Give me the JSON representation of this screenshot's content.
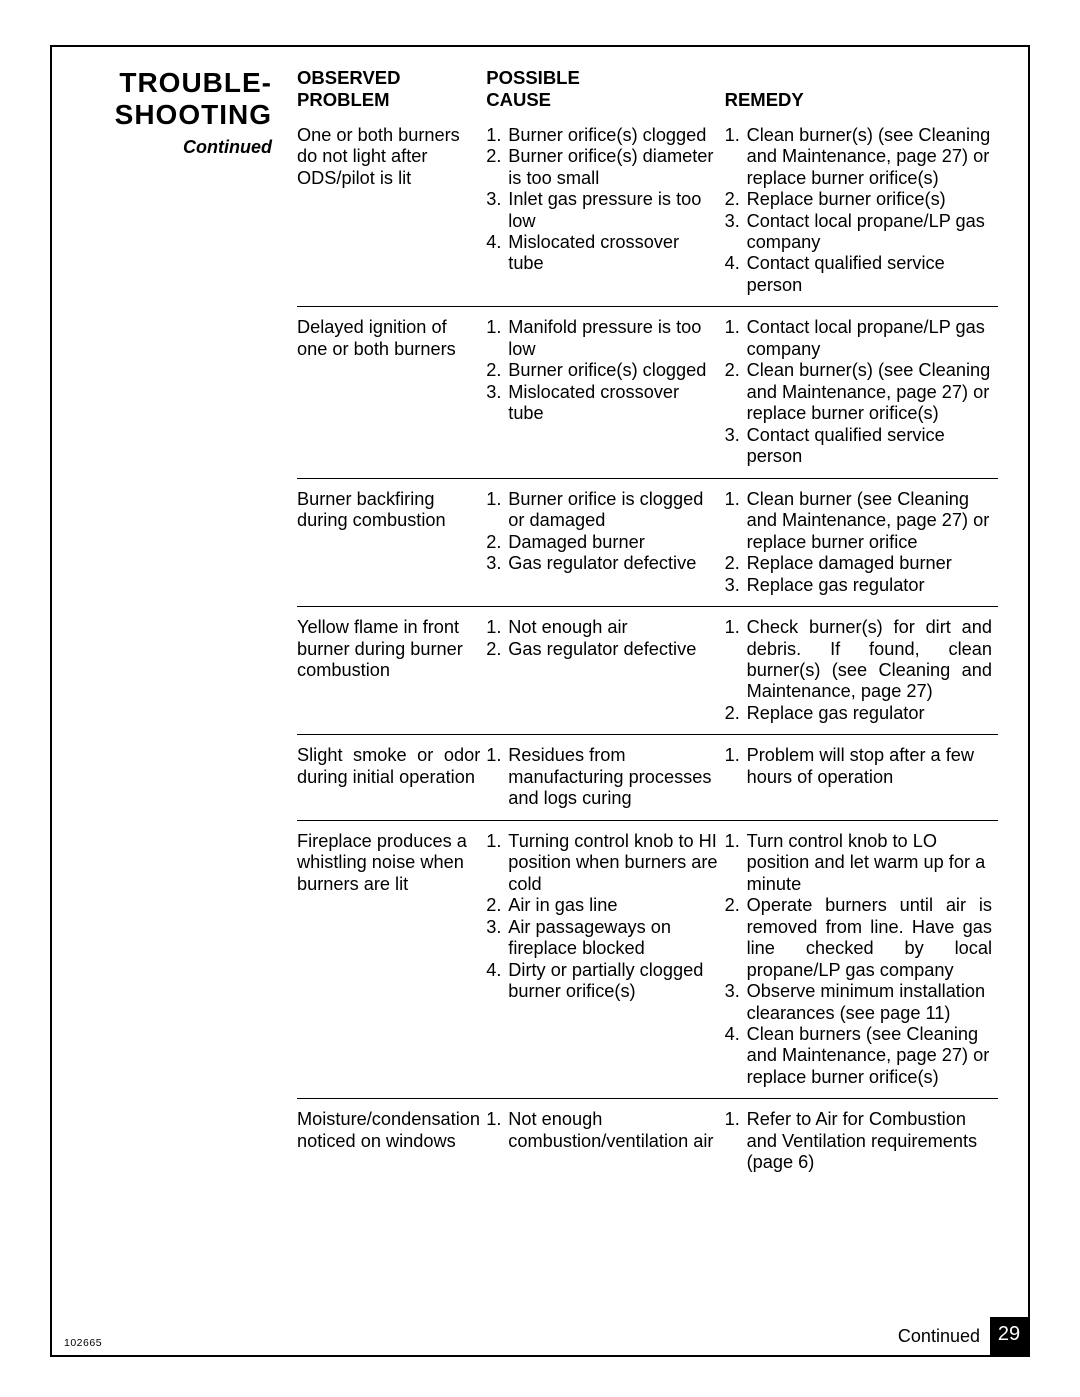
{
  "side": {
    "title_line1": "TROUBLE-",
    "title_line2": "SHOOTING",
    "subtitle": "Continued"
  },
  "headers": {
    "problem_l1": "OBSERVED",
    "problem_l2": "PROBLEM",
    "cause_l1": "POSSIBLE",
    "cause_l2": "CAUSE",
    "remedy": "REMEDY"
  },
  "rows": [
    {
      "problem": "One or both burners do not light after ODS/pilot is lit",
      "causes": [
        "Burner orifice(s) clogged",
        "Burner orifice(s) diameter is too small",
        "Inlet gas pressure is too low",
        "Mislocated crossover tube"
      ],
      "remedies": [
        "Clean burner(s) (see Cleaning and Maintenance, page 27) or replace burner orifice(s)",
        "Replace burner orifice(s)",
        "Contact local propane/LP gas company",
        "Contact qualified service person"
      ]
    },
    {
      "problem": "Delayed ignition of one or both burners",
      "causes": [
        "Manifold pressure is too low",
        "Burner orifice(s) clogged",
        "Mislocated crossover tube"
      ],
      "remedies": [
        "Contact local propane/LP gas company",
        "Clean burner(s) (see Cleaning and Maintenance, page 27) or replace burner orifice(s)",
        "Contact qualified service person"
      ]
    },
    {
      "problem": "Burner backfiring during combustion",
      "causes": [
        "Burner orifice is clogged or damaged",
        "Damaged burner",
        "Gas regulator defective"
      ],
      "remedies": [
        "Clean burner (see Cleaning and Maintenance, page 27) or replace burner orifice",
        "Replace damaged burner",
        "Replace gas regulator"
      ]
    },
    {
      "problem": "Yellow flame in front burner during burner combustion",
      "causes": [
        "Not enough air",
        "Gas regulator defective"
      ],
      "remedies": [
        "Check burner(s) for dirt and debris. If found, clean burner(s) (see Cleaning and Maintenance, page 27)",
        "Replace gas regulator"
      ],
      "remedy_justify": [
        0
      ]
    },
    {
      "problem": "Slight smoke or odor during initial operation",
      "problem_justify": true,
      "causes": [
        "Residues from manufacturing processes and logs curing"
      ],
      "remedies": [
        "Problem will stop after a few hours of operation"
      ]
    },
    {
      "problem": "Fireplace produces a whistling noise when burners are lit",
      "causes": [
        "Turning control knob to HI position when burners are cold",
        "Air in gas line",
        "Air passageways on fireplace blocked",
        "Dirty or partially clogged burner orifice(s)"
      ],
      "remedies": [
        "Turn control knob to LO position and let warm up for a minute",
        "Operate burners until air is removed from line. Have gas line checked by local propane/LP gas company",
        "Observe minimum installation clearances (see page 11)",
        "Clean burners (see Cleaning and Maintenance, page 27) or replace burner orifice(s)"
      ],
      "remedy_justify": [
        1
      ]
    },
    {
      "problem": "Moisture/condensation noticed on windows",
      "causes": [
        "Not enough combustion/ventilation air"
      ],
      "remedies": [
        "Refer to Air for Combustion and Ventilation requirements (page 6)"
      ]
    }
  ],
  "footer": {
    "doc_id": "102665",
    "continued": "Continued",
    "page_number": "29"
  }
}
